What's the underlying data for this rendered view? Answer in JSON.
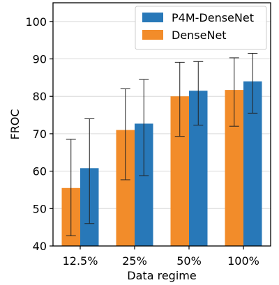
{
  "chart_data": {
    "type": "bar",
    "title": "",
    "xlabel": "Data regime",
    "ylabel": "FROC",
    "categories": [
      "12.5%",
      "25%",
      "50%",
      "100%"
    ],
    "ylim": [
      40,
      105
    ],
    "yticks": [
      40,
      50,
      60,
      70,
      80,
      90,
      100
    ],
    "grid": "horizontal",
    "legend_position": "top-right",
    "legend_order": [
      1,
      0
    ],
    "series": [
      {
        "name": "DenseNet",
        "color": "#f28c2a",
        "values": [
          55.5,
          71.0,
          80.0,
          81.7
        ],
        "err_low": [
          42.7,
          57.7,
          69.3,
          72.0
        ],
        "err_high": [
          68.5,
          82.0,
          89.1,
          90.3
        ]
      },
      {
        "name": "P4M-DenseNet",
        "color": "#2878b8",
        "values": [
          60.8,
          72.7,
          81.5,
          84.0
        ],
        "err_low": [
          46.0,
          58.8,
          72.3,
          75.5
        ],
        "err_high": [
          74.0,
          84.5,
          89.3,
          91.5
        ]
      }
    ]
  }
}
